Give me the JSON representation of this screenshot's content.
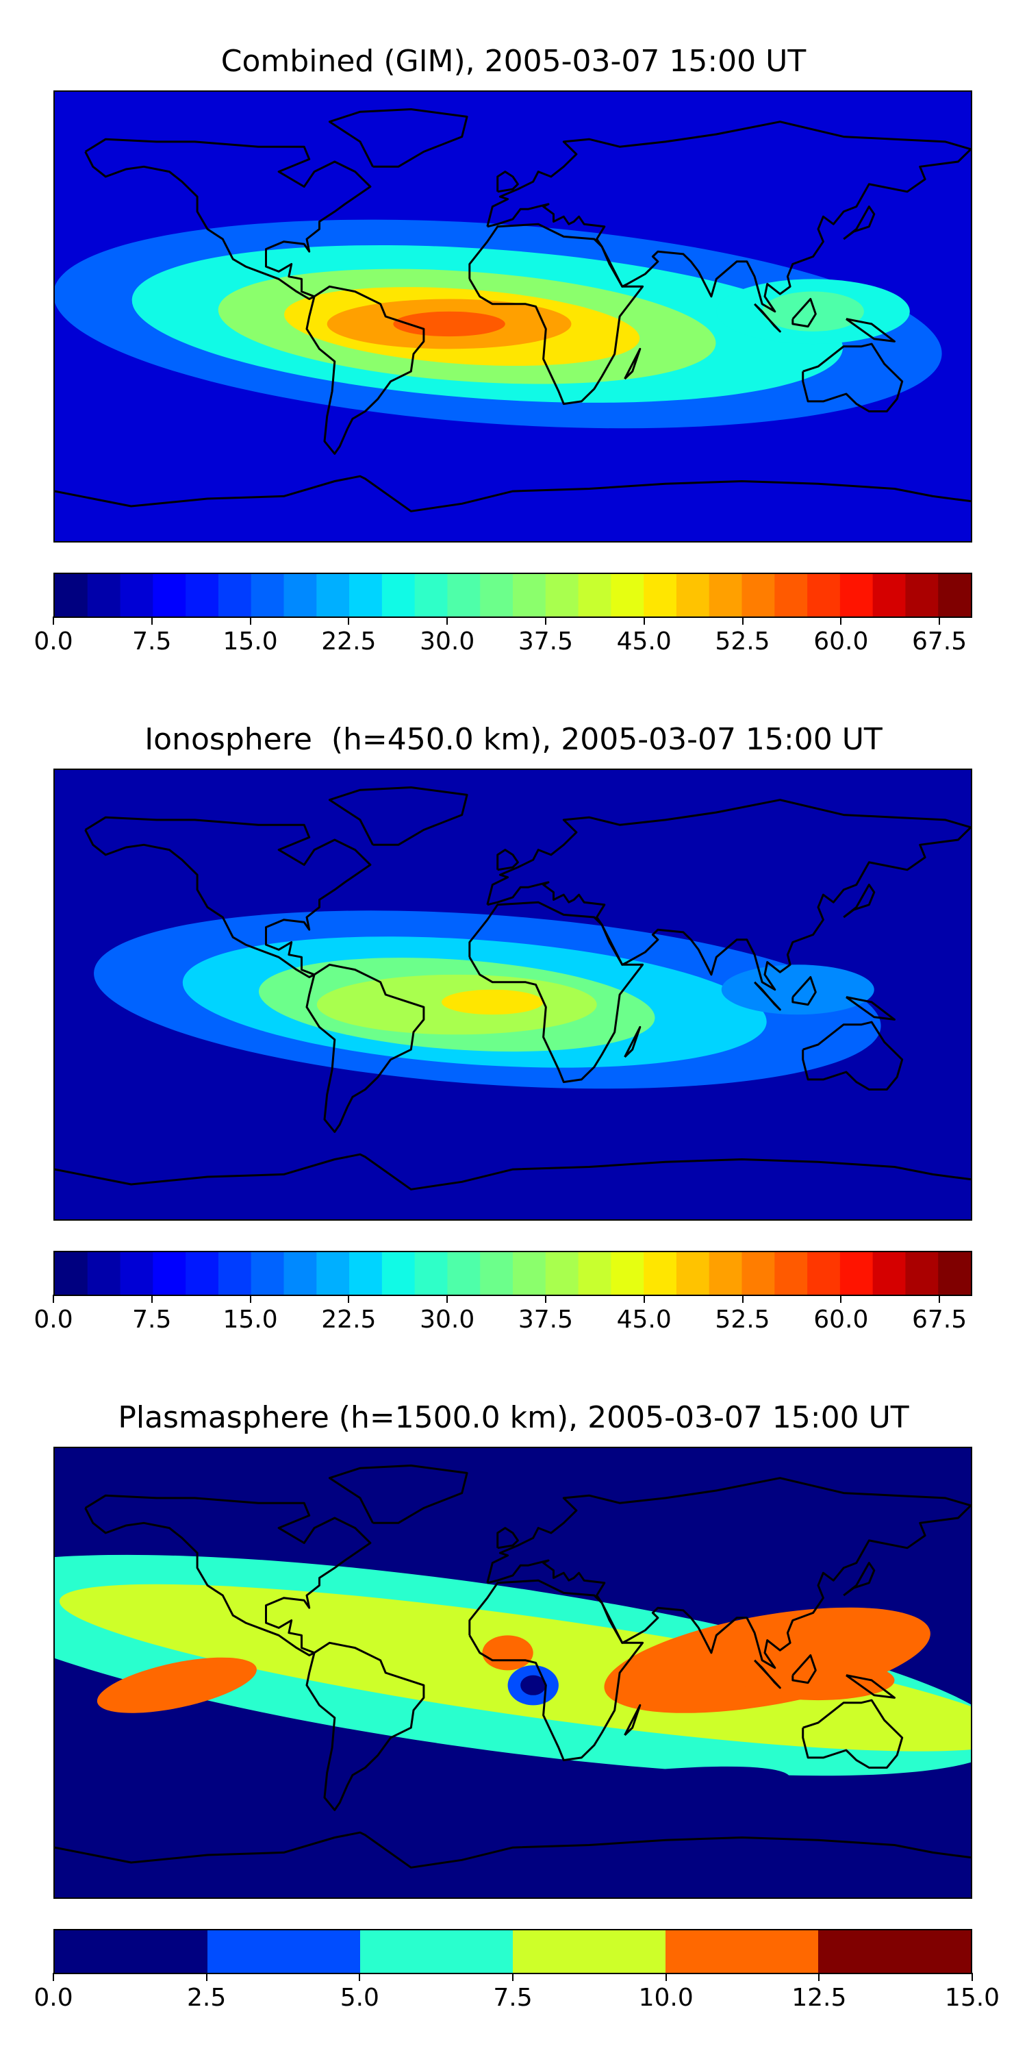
{
  "chart_data": [
    {
      "type": "heatmap",
      "title": "Combined (GIM), 2005-03-07 15:00 UT",
      "colormap": "jet",
      "levels": [
        0,
        2.5,
        5,
        7.5,
        10,
        12.5,
        15,
        17.5,
        20,
        22.5,
        25,
        27.5,
        30,
        32.5,
        35,
        37.5,
        40,
        42.5,
        45,
        47.5,
        50,
        52.5,
        55,
        57.5,
        60,
        62.5,
        65,
        67.5,
        70
      ],
      "colorbar_ticks": [
        "0.0",
        "7.5",
        "15.0",
        "22.5",
        "30.0",
        "37.5",
        "45.0",
        "52.5",
        "60.0",
        "67.5"
      ],
      "clim": [
        0,
        70
      ],
      "peak_value": 57,
      "background_value": 5,
      "coastlines": true
    },
    {
      "type": "heatmap",
      "title": "Ionosphere  (h=450.0 km), 2005-03-07 15:00 UT",
      "colormap": "jet",
      "levels": [
        0,
        2.5,
        5,
        7.5,
        10,
        12.5,
        15,
        17.5,
        20,
        22.5,
        25,
        27.5,
        30,
        32.5,
        35,
        37.5,
        40,
        42.5,
        45,
        47.5,
        50,
        52.5,
        55,
        57.5,
        60,
        62.5,
        65,
        67.5,
        70
      ],
      "colorbar_ticks": [
        "0.0",
        "7.5",
        "15.0",
        "22.5",
        "30.0",
        "37.5",
        "45.0",
        "52.5",
        "60.0",
        "67.5"
      ],
      "clim": [
        0,
        70
      ],
      "peak_value": 47,
      "background_value": 4,
      "coastlines": true
    },
    {
      "type": "heatmap",
      "title": "Plasmasphere (h=1500.0 km), 2005-03-07 15:00 UT",
      "colormap": "jet",
      "levels": [
        0,
        2.5,
        5,
        7.5,
        10,
        12.5,
        15
      ],
      "colorbar_ticks": [
        "0.0",
        "2.5",
        "5.0",
        "7.5",
        "10.0",
        "12.5",
        "15.0"
      ],
      "clim": [
        0,
        15
      ],
      "peak_value": 11,
      "background_value": 2,
      "coastlines": true
    }
  ]
}
